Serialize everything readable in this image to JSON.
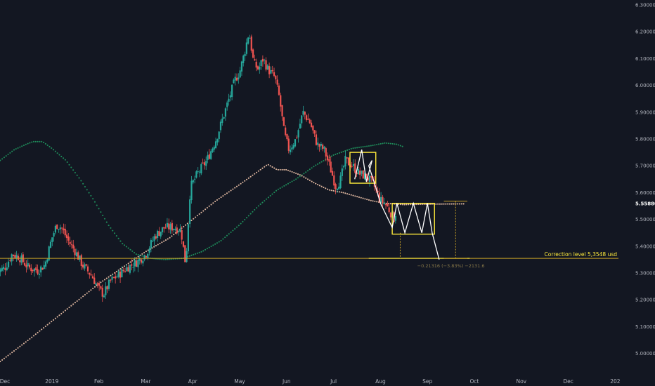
{
  "chart_data": {
    "type": "candlestick",
    "title": "",
    "xlabel": "",
    "ylabel": "",
    "ylim": [
      4.94,
      6.3
    ],
    "grid": false,
    "y_ticks": [
      "5.00000",
      "5.10000",
      "5.20000",
      "5.30000",
      "5.40000",
      "5.50000",
      "5.60000",
      "5.70000",
      "5.80000",
      "5.90000",
      "6.00000",
      "6.10000",
      "6.20000",
      "6.30000"
    ],
    "x_ticks": [
      "Dec",
      "2019",
      "Feb",
      "Mar",
      "Apr",
      "May",
      "Jun",
      "Jul",
      "Aug",
      "Sep",
      "Oct",
      "Nov",
      "Dec",
      "202"
    ],
    "current_price": {
      "value": 5.5588,
      "label": "5.55880",
      "color": "#ffffff"
    },
    "colors": {
      "up": "#26a69a",
      "down": "#ef5350",
      "background": "#131722",
      "box": "#ffeb3b",
      "level": "#c9a227",
      "ma_green": "#1e8c5a",
      "ma_tan": "#e0b8a0",
      "path": "#ffffff"
    },
    "correction_level": {
      "value": 5.3548,
      "label": "Correction level 5,3548 usd"
    },
    "measure_label": "−0.21316 (−3.83%) −2131.6",
    "boxes": [
      {
        "x_from": 7.35,
        "x_to": 7.9,
        "y_from": 5.635,
        "y_to": 5.75
      },
      {
        "x_from": 8.25,
        "x_to": 9.15,
        "y_from": 5.445,
        "y_to": 5.56
      }
    ],
    "projection": [
      [
        7.45,
        5.65
      ],
      [
        7.6,
        5.76
      ],
      [
        7.7,
        5.64
      ],
      [
        7.82,
        5.72
      ],
      [
        7.75,
        5.7
      ],
      [
        7.9,
        5.62
      ],
      [
        8.0,
        5.56
      ],
      [
        8.25,
        5.47
      ],
      [
        8.35,
        5.56
      ],
      [
        8.52,
        5.45
      ],
      [
        8.7,
        5.56
      ],
      [
        8.88,
        5.45
      ],
      [
        9.0,
        5.56
      ],
      [
        9.1,
        5.45
      ],
      [
        9.25,
        5.35
      ]
    ],
    "ma_green": [
      [
        -0.1,
        5.72
      ],
      [
        0.2,
        5.76
      ],
      [
        0.45,
        5.78
      ],
      [
        0.6,
        5.79
      ],
      [
        0.8,
        5.79
      ],
      [
        1.0,
        5.765
      ],
      [
        1.3,
        5.72
      ],
      [
        1.6,
        5.65
      ],
      [
        1.9,
        5.57
      ],
      [
        2.2,
        5.48
      ],
      [
        2.5,
        5.41
      ],
      [
        2.8,
        5.37
      ],
      [
        3.1,
        5.355
      ],
      [
        3.4,
        5.35
      ],
      [
        3.8,
        5.355
      ],
      [
        4.2,
        5.38
      ],
      [
        4.6,
        5.42
      ],
      [
        5.0,
        5.48
      ],
      [
        5.4,
        5.55
      ],
      [
        5.8,
        5.61
      ],
      [
        6.2,
        5.65
      ],
      [
        6.6,
        5.7
      ],
      [
        7.0,
        5.74
      ],
      [
        7.4,
        5.765
      ],
      [
        7.8,
        5.775
      ],
      [
        8.1,
        5.785
      ],
      [
        8.35,
        5.78
      ],
      [
        8.5,
        5.77
      ]
    ],
    "ma_tan": [
      [
        -0.1,
        4.97
      ],
      [
        0.5,
        5.05
      ],
      [
        1.0,
        5.12
      ],
      [
        1.5,
        5.19
      ],
      [
        2.0,
        5.26
      ],
      [
        2.5,
        5.32
      ],
      [
        3.0,
        5.38
      ],
      [
        3.5,
        5.43
      ],
      [
        4.0,
        5.5
      ],
      [
        4.5,
        5.57
      ],
      [
        5.0,
        5.63
      ],
      [
        5.4,
        5.68
      ],
      [
        5.6,
        5.705
      ],
      [
        5.8,
        5.685
      ],
      [
        6.0,
        5.685
      ],
      [
        6.3,
        5.665
      ],
      [
        6.6,
        5.635
      ],
      [
        6.9,
        5.61
      ],
      [
        7.2,
        5.6
      ],
      [
        7.5,
        5.585
      ],
      [
        7.8,
        5.57
      ],
      [
        8.1,
        5.56
      ],
      [
        8.5,
        5.555
      ],
      [
        8.7,
        5.556
      ],
      [
        9.2,
        5.557
      ],
      [
        9.8,
        5.558
      ]
    ],
    "close": [
      [
        -0.2,
        5.3
      ],
      [
        0.0,
        5.32
      ],
      [
        0.15,
        5.37
      ],
      [
        0.3,
        5.36
      ],
      [
        0.5,
        5.32
      ],
      [
        0.7,
        5.31
      ],
      [
        0.85,
        5.33
      ],
      [
        1.0,
        5.43
      ],
      [
        1.1,
        5.48
      ],
      [
        1.2,
        5.47
      ],
      [
        1.35,
        5.42
      ],
      [
        1.5,
        5.38
      ],
      [
        1.65,
        5.33
      ],
      [
        1.85,
        5.29
      ],
      [
        2.0,
        5.24
      ],
      [
        2.1,
        5.22
      ],
      [
        2.25,
        5.27
      ],
      [
        2.4,
        5.29
      ],
      [
        2.6,
        5.32
      ],
      [
        2.8,
        5.34
      ],
      [
        3.0,
        5.37
      ],
      [
        3.2,
        5.44
      ],
      [
        3.4,
        5.47
      ],
      [
        3.6,
        5.47
      ],
      [
        3.75,
        5.46
      ],
      [
        3.85,
        5.33
      ],
      [
        3.95,
        5.62
      ],
      [
        4.1,
        5.67
      ],
      [
        4.3,
        5.72
      ],
      [
        4.5,
        5.8
      ],
      [
        4.7,
        5.91
      ],
      [
        4.9,
        6.02
      ],
      [
        5.0,
        6.05
      ],
      [
        5.1,
        6.12
      ],
      [
        5.2,
        6.2
      ],
      [
        5.3,
        6.08
      ],
      [
        5.4,
        6.06
      ],
      [
        5.5,
        6.1
      ],
      [
        5.6,
        6.06
      ],
      [
        5.75,
        6.03
      ],
      [
        5.85,
        5.95
      ],
      [
        5.95,
        5.82
      ],
      [
        6.05,
        5.76
      ],
      [
        6.2,
        5.8
      ],
      [
        6.35,
        5.9
      ],
      [
        6.5,
        5.86
      ],
      [
        6.65,
        5.78
      ],
      [
        6.8,
        5.76
      ],
      [
        6.95,
        5.68
      ],
      [
        7.05,
        5.62
      ],
      [
        7.15,
        5.65
      ],
      [
        7.25,
        5.72
      ],
      [
        7.4,
        5.7
      ],
      [
        7.55,
        5.67
      ],
      [
        7.7,
        5.66
      ],
      [
        7.85,
        5.63
      ],
      [
        8.0,
        5.57
      ],
      [
        8.1,
        5.56
      ],
      [
        8.2,
        5.53
      ],
      [
        8.3,
        5.5
      ],
      [
        8.35,
        5.555
      ]
    ]
  }
}
